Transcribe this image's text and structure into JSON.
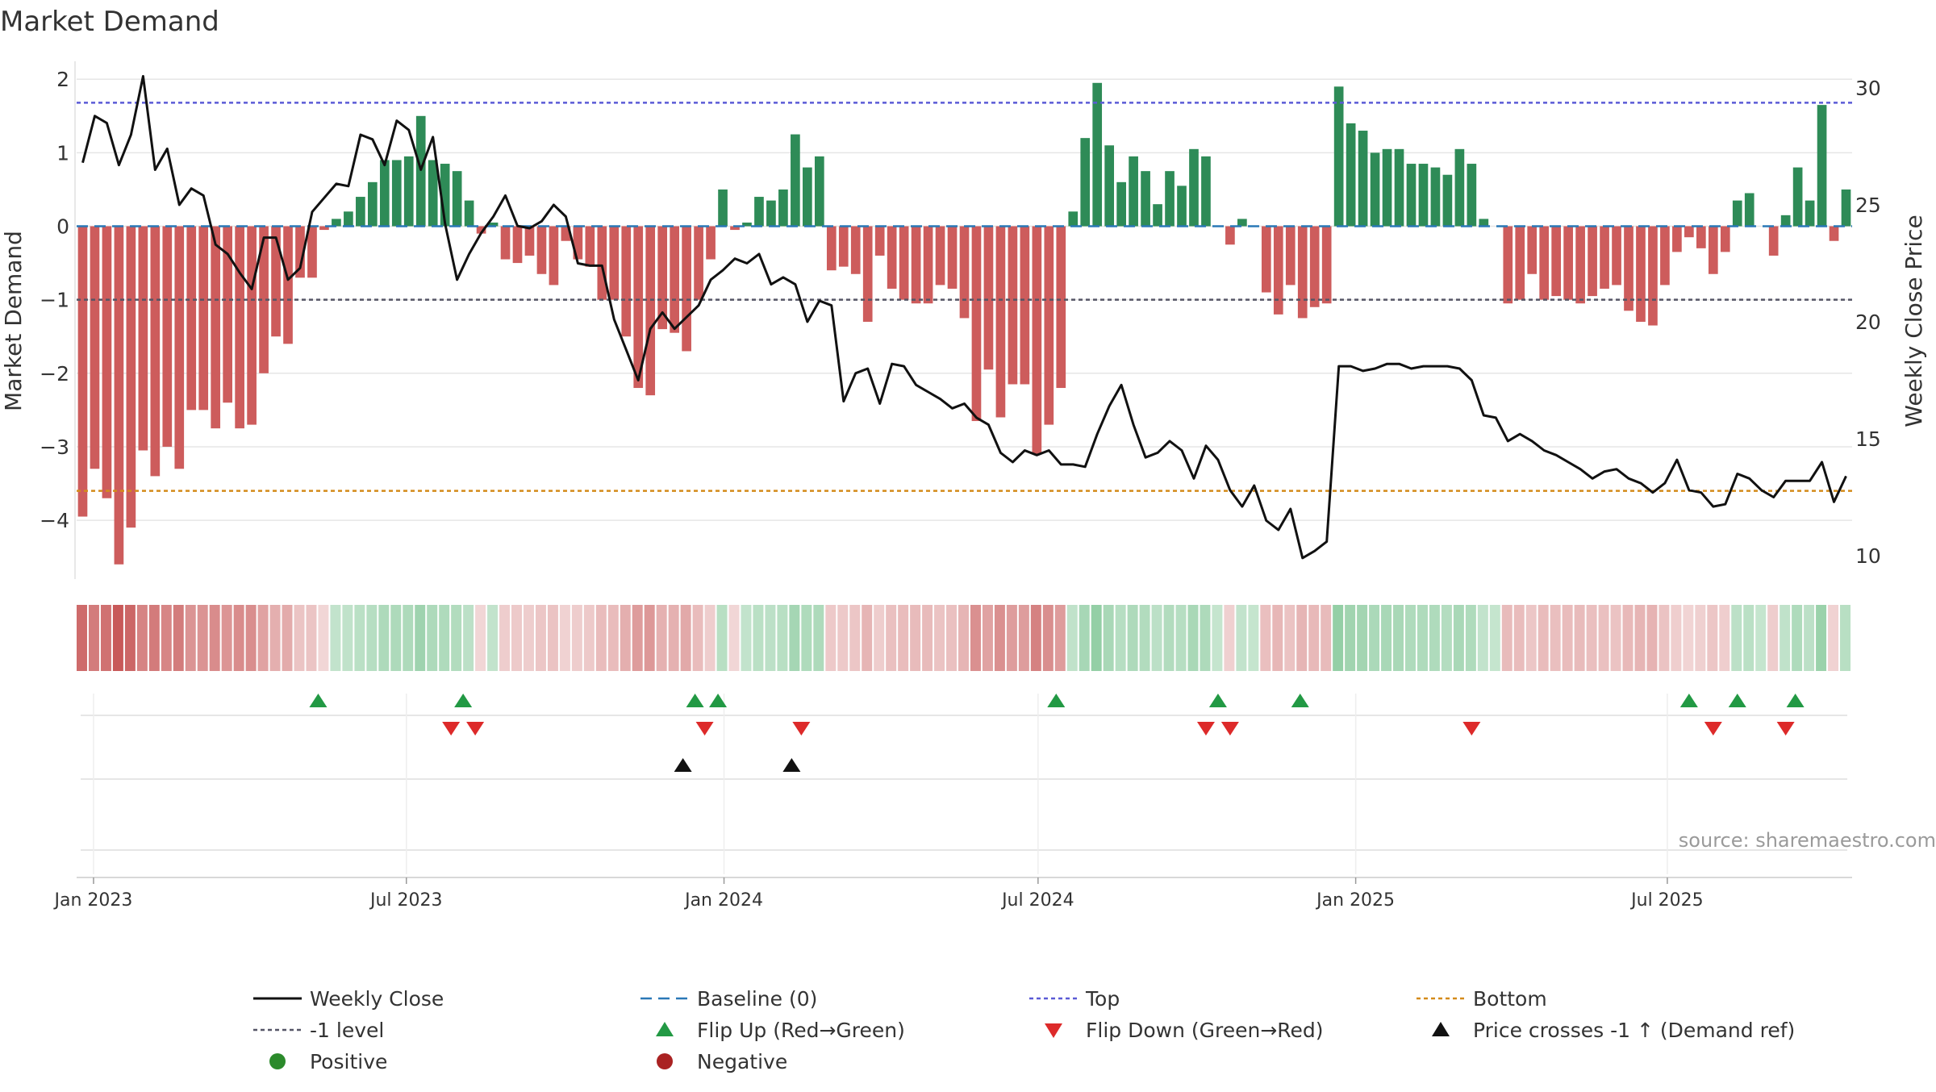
{
  "chart_data": {
    "type": "bar",
    "title": "Market Demand",
    "ylabel": "Market Demand",
    "y2label": "Weekly Close Price",
    "ylim": [
      -4.8,
      2.2
    ],
    "y_ticks": [
      2,
      1,
      0,
      -1,
      -2,
      -3,
      -4
    ],
    "y_tick_labels": [
      "2",
      "1",
      "0",
      "−1",
      "−2",
      "−3",
      "−4"
    ],
    "y2lim": [
      9,
      31
    ],
    "y2_ticks": [
      30,
      25,
      20,
      15,
      10
    ],
    "y2_tick_labels": [
      "30",
      "25",
      "20",
      "15",
      "10"
    ],
    "x_ticks": [
      {
        "label": "Jan 2023",
        "week": 1.4
      },
      {
        "label": "Jul 2023",
        "week": 27.3
      },
      {
        "label": "Jan 2024",
        "week": 53.6
      },
      {
        "label": "Jul 2024",
        "week": 79.6
      },
      {
        "label": "Jan 2025",
        "week": 105.9
      },
      {
        "label": "Jul 2025",
        "week": 131.7
      }
    ],
    "reference_lines": {
      "top": 1.68,
      "minus_one": -1,
      "bottom": -3.6,
      "baseline": 0
    },
    "demand": [
      -3.95,
      -3.3,
      -3.7,
      -4.6,
      -4.1,
      -3.05,
      -3.4,
      -3.0,
      -3.3,
      -2.5,
      -2.5,
      -2.75,
      -2.4,
      -2.75,
      -2.7,
      -2.0,
      -1.5,
      -1.6,
      -0.7,
      -0.7,
      -0.05,
      0.1,
      0.2,
      0.4,
      0.6,
      0.9,
      0.9,
      0.95,
      1.5,
      0.9,
      0.85,
      0.75,
      0.35,
      -0.1,
      0.05,
      -0.45,
      -0.5,
      -0.4,
      -0.65,
      -0.8,
      -0.2,
      -0.45,
      -0.55,
      -1.0,
      -1.0,
      -1.5,
      -2.2,
      -2.3,
      -1.4,
      -1.45,
      -1.7,
      -1.0,
      -0.45,
      0.5,
      -0.05,
      0.05,
      0.4,
      0.35,
      0.5,
      1.25,
      0.8,
      0.95,
      -0.6,
      -0.55,
      -0.65,
      -1.3,
      -0.4,
      -0.85,
      -1.0,
      -1.05,
      -1.05,
      -0.8,
      -0.85,
      -1.25,
      -2.65,
      -1.95,
      -2.6,
      -2.15,
      -2.15,
      -3.1,
      -2.7,
      -2.2,
      0.2,
      1.2,
      1.95,
      1.1,
      0.6,
      0.95,
      0.75,
      0.3,
      0.75,
      0.55,
      1.05,
      0.95,
      0,
      -0.25,
      0.1,
      0,
      -0.9,
      -1.2,
      -0.8,
      -1.25,
      -1.1,
      -1.05,
      1.9,
      1.4,
      1.3,
      1.0,
      1.05,
      1.05,
      0.85,
      0.85,
      0.8,
      0.7,
      1.05,
      0.85,
      0.1,
      0,
      -1.05,
      -1.0,
      -0.65,
      -1.0,
      -0.95,
      -1.0,
      -1.05,
      -0.95,
      -0.85,
      -0.8,
      -1.15,
      -1.3,
      -1.35,
      -0.8,
      -0.35,
      -0.15,
      -0.3,
      -0.65,
      -0.35,
      0.35,
      0.45,
      0,
      -0.4,
      0.15,
      0.8,
      0.35,
      1.65,
      -0.2,
      0.5
    ],
    "close": [
      26.8,
      28.8,
      28.5,
      26.7,
      28.0,
      30.5,
      26.5,
      27.4,
      25.0,
      25.7,
      25.4,
      23.3,
      22.9,
      22.1,
      21.4,
      23.6,
      23.6,
      21.8,
      22.3,
      24.7,
      25.3,
      25.9,
      25.8,
      28.0,
      27.8,
      26.7,
      28.6,
      28.2,
      26.5,
      27.9,
      24.2,
      21.8,
      22.9,
      23.8,
      24.5,
      25.4,
      24.1,
      24.0,
      24.3,
      25.0,
      24.5,
      22.5,
      22.4,
      22.4,
      20.1,
      18.8,
      17.5,
      19.7,
      20.4,
      19.7,
      20.2,
      20.7,
      21.8,
      22.2,
      22.7,
      22.5,
      22.9,
      21.6,
      21.9,
      21.6,
      20.0,
      20.9,
      20.7,
      16.6,
      17.8,
      18.0,
      16.5,
      18.2,
      18.1,
      17.3,
      17.0,
      16.7,
      16.3,
      16.5,
      15.9,
      15.6,
      14.4,
      14.0,
      14.5,
      14.3,
      14.5,
      13.9,
      13.9,
      13.8,
      15.2,
      16.4,
      17.3,
      15.6,
      14.2,
      14.4,
      14.9,
      14.5,
      13.3,
      14.7,
      14.1,
      12.8,
      12.1,
      13.0,
      11.5,
      11.1,
      12.0,
      9.9,
      10.2,
      10.6,
      18.1,
      18.1,
      17.9,
      18.0,
      18.2,
      18.2,
      18.0,
      18.1,
      18.1,
      18.1,
      18.0,
      17.5,
      16.0,
      15.9,
      14.9,
      15.2,
      14.9,
      14.5,
      14.3,
      14.0,
      13.7,
      13.3,
      13.6,
      13.7,
      13.3,
      13.1,
      12.7,
      13.1,
      14.1,
      12.8,
      12.7,
      12.1,
      12.2,
      13.5,
      13.3,
      12.8,
      12.5,
      13.2,
      13.2,
      13.2,
      14.0,
      12.3,
      13.4
    ],
    "flip_up_weeks": [
      20.0,
      32.0,
      51.2,
      53.1,
      81.1,
      94.5,
      101.3,
      133.5,
      137.5,
      142.3
    ],
    "flip_down_weeks": [
      31.0,
      33.0,
      52.0,
      60.0,
      93.5,
      95.5,
      115.5,
      135.5,
      141.5
    ],
    "price_cross_weeks": [
      50.2,
      59.2
    ],
    "legend": [
      {
        "label": "Weekly Close",
        "marker": "solid-line",
        "color": "#111111"
      },
      {
        "label": "Baseline (0)",
        "marker": "dashed-line",
        "color": "#2a78b7"
      },
      {
        "label": "Top",
        "marker": "dotted-line",
        "color": "#5b5bd6"
      },
      {
        "label": "Bottom",
        "marker": "dotted-line",
        "color": "#d48b1a"
      },
      {
        "label": "-1 level",
        "marker": "dotted-line",
        "color": "#555566"
      },
      {
        "label": "Flip Up (Red→Green)",
        "marker": "triangle-up",
        "color": "#229944"
      },
      {
        "label": "Flip Down (Green→Red)",
        "marker": "triangle-down",
        "color": "#dd2a2a"
      },
      {
        "label": "Price crosses -1 ↑ (Demand ref)",
        "marker": "triangle-up",
        "color": "#111111"
      },
      {
        "label": "Positive",
        "marker": "dot",
        "color": "#2b8a2b"
      },
      {
        "label": "Negative",
        "marker": "dot",
        "color": "#aa2222"
      }
    ],
    "source": "source: sharemaestro.com"
  },
  "colors": {
    "positive_bar": "#2e8b57",
    "negative_bar": "#cd5c5c",
    "close_line": "#111111",
    "grid": "#e6e6e6",
    "axis_text": "#333333"
  }
}
